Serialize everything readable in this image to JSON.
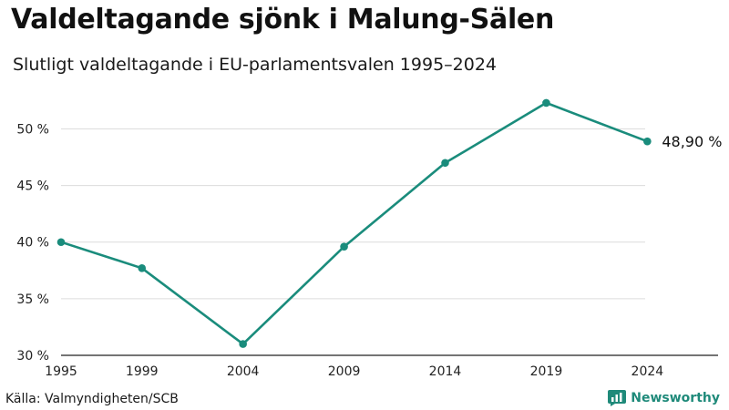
{
  "title": "Valdeltagande sjönk i Malung-Sälen",
  "subtitle": "Slutligt valdeltagande i EU-parlamentsvalen 1995–2024",
  "source": "Källa: Valmyndigheten/SCB",
  "brand": "Newsworthy",
  "colors": {
    "line": "#1a8c7c",
    "grid": "#dcdcdc",
    "axis": "#222222",
    "brand": "#1f8a7a"
  },
  "chart_data": {
    "type": "line",
    "x": [
      1995,
      1999,
      2004,
      2009,
      2014,
      2019,
      2024
    ],
    "series": [
      {
        "values": [
          40.0,
          37.7,
          31.0,
          39.6,
          47.0,
          52.3,
          48.9
        ]
      }
    ],
    "xticks": [
      "1995",
      "1999",
      "2004",
      "2009",
      "2014",
      "2019",
      "2024"
    ],
    "yticks": [
      30,
      35,
      40,
      45,
      50
    ],
    "ytick_labels": [
      "30 %",
      "35 %",
      "40 %",
      "45 %",
      "50 %"
    ],
    "xlim": [
      1995,
      2027.5
    ],
    "ylim": [
      30,
      53.5
    ],
    "end_label": "48,90 %",
    "grid": true
  }
}
